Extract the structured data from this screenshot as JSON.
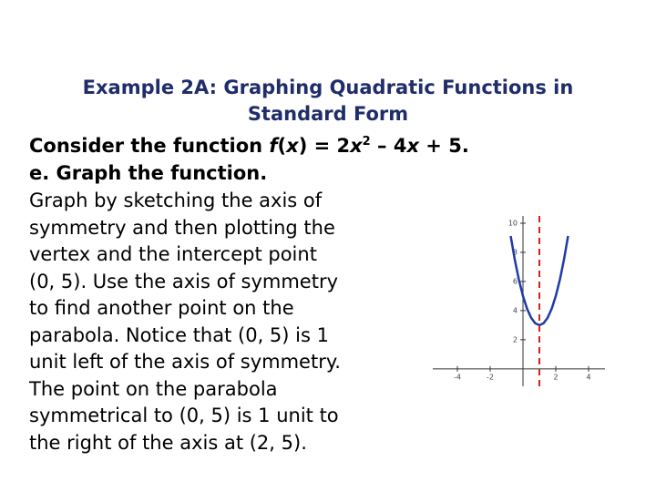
{
  "title": [
    "Example 2A: Graphing Quadratic Functions in",
    "Standard Form"
  ],
  "statement": [
    "Consider the function ",
    "f",
    "(",
    "x",
    ") = 2",
    "x",
    "2",
    " – 4",
    "x",
    " + 5."
  ],
  "part": "e. Graph the function.",
  "body": [
    "Graph by sketching the axis of",
    "symmetry and then plotting the",
    "vertex and the intercept point",
    "(0, 5). Use the axis of symmetry",
    "to find another point on the",
    "parabola. Notice that (0, 5) is 1",
    "unit left of the axis of symmetry.",
    "The point on the parabola",
    "symmetrical to (0, 5) is 1 unit to",
    "the right of the axis at (2, 5)."
  ],
  "graph": {
    "xlim": [
      -5.5,
      5
    ],
    "ylim": [
      -1.2,
      10.5
    ],
    "xticks": [
      -4,
      -2,
      2,
      4
    ],
    "yticks": [
      2,
      4,
      6,
      8,
      10
    ],
    "axis_of_symmetry": 1,
    "x": [
      -0.75,
      -0.5,
      -0.25,
      0,
      0.25,
      0.5,
      0.75,
      1,
      1.25,
      1.5,
      1.75,
      2,
      2.25,
      2.5,
      2.75
    ],
    "values": [
      9.125,
      7.5,
      6.125,
      5,
      4.125,
      3.5,
      3.125,
      3,
      3.125,
      3.5,
      4.125,
      5,
      6.125,
      7.5,
      9.125
    ]
  }
}
